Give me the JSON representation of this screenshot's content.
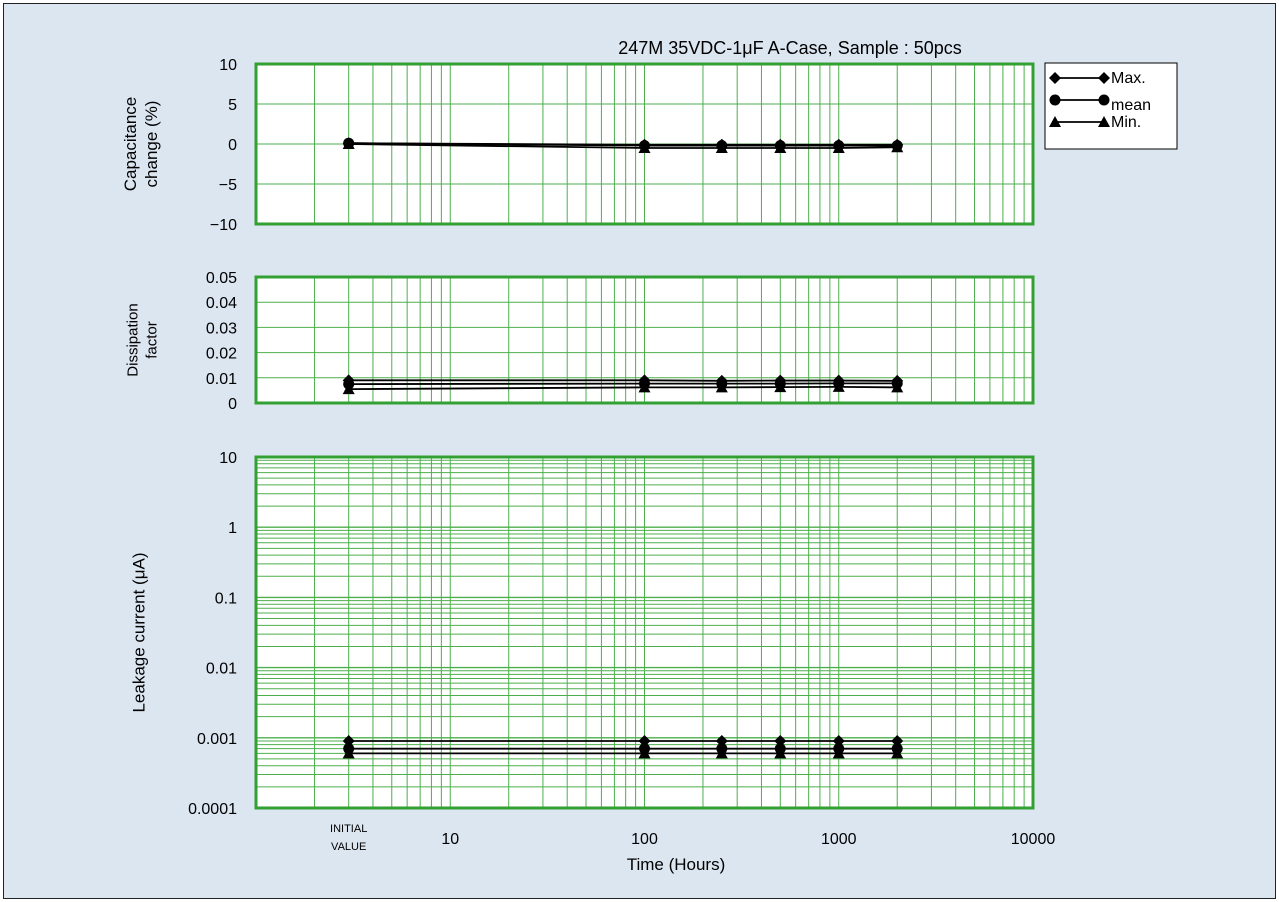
{
  "chart_data": {
    "type": "line",
    "title": "247M 35VDC-1μF A-Case, Sample : 50pcs",
    "xlabel": "Time (Hours)",
    "x_scale": "log",
    "x_ticks": [
      {
        "value": 3,
        "label": "INITIAL\nVALUE"
      },
      {
        "value": 10,
        "label": "10"
      },
      {
        "value": 100,
        "label": "100"
      },
      {
        "value": 1000,
        "label": "1000"
      },
      {
        "value": 10000,
        "label": "10000"
      }
    ],
    "xlim": [
      1,
      10000
    ],
    "x": [
      3,
      100,
      250,
      500,
      1000,
      2000
    ],
    "grid": true,
    "legend": {
      "placement": "top-right",
      "entries": [
        "Max.",
        "mean",
        "Min."
      ]
    },
    "panels": [
      {
        "ylabel": [
          "Capacitance",
          "change  (%)"
        ],
        "y_scale": "linear",
        "ylim": [
          -10,
          10
        ],
        "y_ticks": [
          "10",
          "5",
          "0",
          "−5",
          "−10"
        ],
        "series": [
          {
            "name": "Max.",
            "values": [
              0.1,
              -0.1,
              -0.1,
              -0.1,
              -0.1,
              -0.1
            ]
          },
          {
            "name": "mean",
            "values": [
              0.1,
              -0.2,
              -0.2,
              -0.2,
              -0.2,
              -0.2
            ]
          },
          {
            "name": "Min.",
            "values": [
              0.0,
              -0.5,
              -0.5,
              -0.5,
              -0.5,
              -0.4
            ]
          }
        ]
      },
      {
        "ylabel": [
          "Dissipation",
          "factor"
        ],
        "y_scale": "linear",
        "ylim": [
          0,
          0.05
        ],
        "y_ticks": [
          "0.05",
          "0.04",
          "0.03",
          "0.02",
          "0.01",
          "0"
        ],
        "series": [
          {
            "name": "Max.",
            "values": [
              0.009,
              0.009,
              0.0088,
              0.0089,
              0.0089,
              0.0088
            ]
          },
          {
            "name": "mean",
            "values": [
              0.0075,
              0.0077,
              0.0077,
              0.0077,
              0.0078,
              0.0078
            ]
          },
          {
            "name": "Min.",
            "values": [
              0.0055,
              0.0062,
              0.0062,
              0.0063,
              0.0064,
              0.0062
            ]
          }
        ]
      },
      {
        "ylabel": [
          "Leakage  current (μA)"
        ],
        "y_scale": "log",
        "ylim": [
          0.0001,
          10
        ],
        "y_ticks": [
          "10",
          "1",
          "0.1",
          "0.01",
          "0.001",
          "0.0001"
        ],
        "series": [
          {
            "name": "Max.",
            "values": [
              0.0009,
              0.0009,
              0.0009,
              0.0009,
              0.0009,
              0.0009
            ]
          },
          {
            "name": "mean",
            "values": [
              0.0007,
              0.0007,
              0.0007,
              0.0007,
              0.0007,
              0.0007
            ]
          },
          {
            "name": "Min.",
            "values": [
              0.0006,
              0.0006,
              0.0006,
              0.0006,
              0.0006,
              0.0006
            ]
          }
        ]
      }
    ]
  }
}
